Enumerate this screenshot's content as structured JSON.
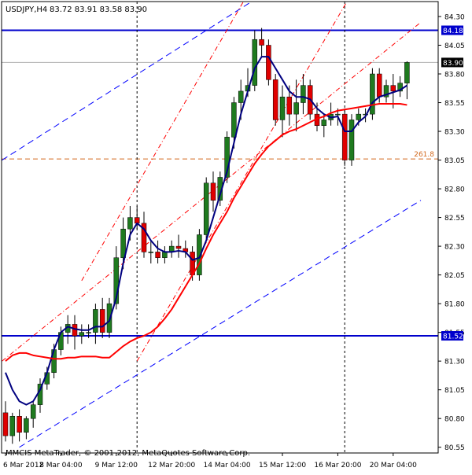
{
  "header": {
    "symbol": "USDJPY,H4",
    "ohlc": "83.72 83.91 83.58 83.90"
  },
  "watermark": "MMCIS MetaTrader, © 2001-2012, MetaQuotes Software Corp.",
  "colors": {
    "background": "#ffffff",
    "bull": "#1f7a1f",
    "bear": "#e00000",
    "ma_fast": "#000080",
    "ma_slow": "#ff0000",
    "channel_blue": "#0000ff",
    "channel_red": "#ff0000",
    "fib": "#d2691e",
    "hline": "#0000cc",
    "vline": "#000000",
    "price_tag_dark": "#000000"
  },
  "chart_data": {
    "type": "candlestick",
    "title": "USDJPY,H4",
    "ylim": [
      80.5,
      84.43
    ],
    "y_ticks": [
      "84.30",
      "84.05",
      "83.80",
      "83.55",
      "83.30",
      "83.05",
      "82.80",
      "82.55",
      "82.30",
      "82.05",
      "81.80",
      "81.55",
      "81.30",
      "81.05",
      "80.80",
      "80.55"
    ],
    "x_ticks": [
      "6 Mar 2012",
      "8 Mar 04:00",
      "9 Mar 12:00",
      "12 Mar 20:00",
      "14 Mar 04:00",
      "15 Mar 12:00",
      "16 Mar 20:00",
      "20 Mar 04:00"
    ],
    "x_tick_index": [
      0,
      8,
      16,
      24,
      32,
      40,
      48,
      56
    ],
    "price_tags": [
      {
        "label": "84.18",
        "value": 84.18,
        "style": "blue"
      },
      {
        "label": "83.90",
        "value": 83.9,
        "style": "dark"
      },
      {
        "label": "81.52",
        "value": 81.52,
        "style": "blue"
      }
    ],
    "horizontal_lines": [
      {
        "value": 84.18,
        "style": "blue"
      },
      {
        "value": 83.9,
        "style": "gray"
      },
      {
        "value": 81.52,
        "style": "blue"
      }
    ],
    "fib_level": {
      "label": "261.8",
      "value": 83.06
    },
    "vertical_lines_at_index": [
      19,
      49
    ],
    "candles": [
      [
        80.85,
        80.95,
        80.6,
        80.65
      ],
      [
        80.65,
        80.85,
        80.58,
        80.82
      ],
      [
        80.82,
        80.88,
        80.6,
        80.68
      ],
      [
        80.68,
        80.82,
        80.62,
        80.8
      ],
      [
        80.8,
        80.95,
        80.72,
        80.92
      ],
      [
        80.92,
        81.15,
        80.85,
        81.1
      ],
      [
        81.1,
        81.25,
        81.05,
        81.2
      ],
      [
        81.2,
        81.45,
        81.15,
        81.4
      ],
      [
        81.4,
        81.6,
        81.35,
        81.55
      ],
      [
        81.55,
        81.7,
        81.45,
        81.62
      ],
      [
        81.62,
        81.7,
        81.4,
        81.52
      ],
      [
        81.52,
        81.62,
        81.45,
        81.55
      ],
      [
        81.55,
        81.62,
        81.5,
        81.55
      ],
      [
        81.55,
        81.8,
        81.45,
        81.75
      ],
      [
        81.75,
        81.85,
        81.5,
        81.55
      ],
      [
        81.55,
        81.85,
        81.5,
        81.8
      ],
      [
        81.8,
        82.3,
        81.75,
        82.2
      ],
      [
        82.2,
        82.55,
        82.1,
        82.45
      ],
      [
        82.45,
        82.65,
        82.35,
        82.55
      ],
      [
        82.55,
        82.65,
        82.45,
        82.5
      ],
      [
        82.5,
        82.6,
        82.2,
        82.25
      ],
      [
        82.25,
        82.35,
        82.15,
        82.25
      ],
      [
        82.25,
        82.35,
        82.15,
        82.2
      ],
      [
        82.2,
        82.3,
        82.15,
        82.25
      ],
      [
        82.25,
        82.35,
        82.2,
        82.3
      ],
      [
        82.3,
        82.4,
        82.2,
        82.28
      ],
      [
        82.28,
        82.35,
        82.2,
        82.25
      ],
      [
        82.25,
        82.3,
        82.0,
        82.05
      ],
      [
        82.05,
        82.45,
        82.0,
        82.4
      ],
      [
        82.4,
        82.9,
        82.35,
        82.85
      ],
      [
        82.85,
        82.95,
        82.6,
        82.7
      ],
      [
        82.7,
        82.95,
        82.65,
        82.9
      ],
      [
        82.9,
        83.3,
        82.85,
        83.25
      ],
      [
        83.25,
        83.6,
        83.15,
        83.55
      ],
      [
        83.55,
        83.75,
        83.4,
        83.65
      ],
      [
        83.65,
        83.85,
        83.6,
        83.7
      ],
      [
        83.7,
        84.18,
        83.65,
        84.1
      ],
      [
        84.1,
        84.2,
        83.95,
        84.05
      ],
      [
        84.05,
        84.1,
        83.7,
        83.75
      ],
      [
        83.75,
        83.8,
        83.35,
        83.4
      ],
      [
        83.4,
        83.7,
        83.25,
        83.6
      ],
      [
        83.6,
        83.7,
        83.35,
        83.45
      ],
      [
        83.45,
        83.75,
        83.3,
        83.55
      ],
      [
        83.55,
        83.8,
        83.45,
        83.7
      ],
      [
        83.7,
        83.75,
        83.4,
        83.45
      ],
      [
        83.45,
        83.55,
        83.3,
        83.35
      ],
      [
        83.35,
        83.45,
        83.25,
        83.4
      ],
      [
        83.4,
        83.55,
        83.35,
        83.45
      ],
      [
        83.45,
        83.5,
        83.35,
        83.45
      ],
      [
        83.45,
        83.5,
        83.0,
        83.05
      ],
      [
        83.05,
        83.45,
        83.0,
        83.4
      ],
      [
        83.4,
        83.5,
        83.35,
        83.45
      ],
      [
        83.45,
        83.5,
        83.38,
        83.45
      ],
      [
        83.45,
        83.85,
        83.4,
        83.8
      ],
      [
        83.8,
        83.85,
        83.55,
        83.6
      ],
      [
        83.6,
        83.75,
        83.55,
        83.7
      ],
      [
        83.7,
        83.8,
        83.5,
        83.65
      ],
      [
        83.65,
        83.78,
        83.6,
        83.72
      ],
      [
        83.72,
        83.91,
        83.58,
        83.9
      ]
    ],
    "series": [
      {
        "name": "",
        "style": "ma_fast",
        "values": [
          81.2,
          81.05,
          80.95,
          80.92,
          80.95,
          81.05,
          81.2,
          81.4,
          81.55,
          81.6,
          81.58,
          81.57,
          81.57,
          81.6,
          81.6,
          81.65,
          81.85,
          82.15,
          82.4,
          82.5,
          82.45,
          82.35,
          82.28,
          82.25,
          82.25,
          82.26,
          82.25,
          82.18,
          82.2,
          82.35,
          82.55,
          82.75,
          82.95,
          83.2,
          83.45,
          83.65,
          83.85,
          83.95,
          83.95,
          83.85,
          83.75,
          83.65,
          83.6,
          83.6,
          83.58,
          83.5,
          83.45,
          83.42,
          83.43,
          83.3,
          83.3,
          83.38,
          83.43,
          83.55,
          83.6,
          83.62,
          83.64,
          83.66,
          83.7
        ]
      },
      {
        "name": "",
        "style": "ma_slow",
        "values": [
          81.3,
          81.35,
          81.37,
          81.37,
          81.35,
          81.34,
          81.33,
          81.32,
          81.32,
          81.33,
          81.33,
          81.34,
          81.34,
          81.34,
          81.33,
          81.33,
          81.38,
          81.43,
          81.47,
          81.5,
          81.52,
          81.55,
          81.6,
          81.67,
          81.75,
          81.85,
          81.95,
          82.05,
          82.15,
          82.28,
          82.4,
          82.5,
          82.6,
          82.72,
          82.82,
          82.92,
          83.02,
          83.1,
          83.17,
          83.22,
          83.27,
          83.3,
          83.32,
          83.35,
          83.38,
          83.41,
          83.43,
          83.46,
          83.48,
          83.49,
          83.5,
          83.51,
          83.52,
          83.53,
          83.54,
          83.54,
          83.54,
          83.54,
          83.53
        ]
      }
    ],
    "channels": [
      {
        "style": "blue_dash",
        "points": [
          [
            -0.5,
            83.05
          ],
          [
            40,
            84.6
          ]
        ]
      },
      {
        "style": "blue_dash",
        "points": [
          [
            2,
            80.55
          ],
          [
            60,
            82.7
          ]
        ]
      },
      {
        "style": "red_dashdot",
        "points": [
          [
            -0.5,
            81.3
          ],
          [
            60,
            84.25
          ]
        ]
      },
      {
        "style": "red_dashdot",
        "points": [
          [
            11,
            82.0
          ],
          [
            36,
            84.6
          ]
        ]
      },
      {
        "style": "red_dashdot",
        "points": [
          [
            19,
            81.3
          ],
          [
            50,
            84.5
          ]
        ]
      }
    ]
  }
}
